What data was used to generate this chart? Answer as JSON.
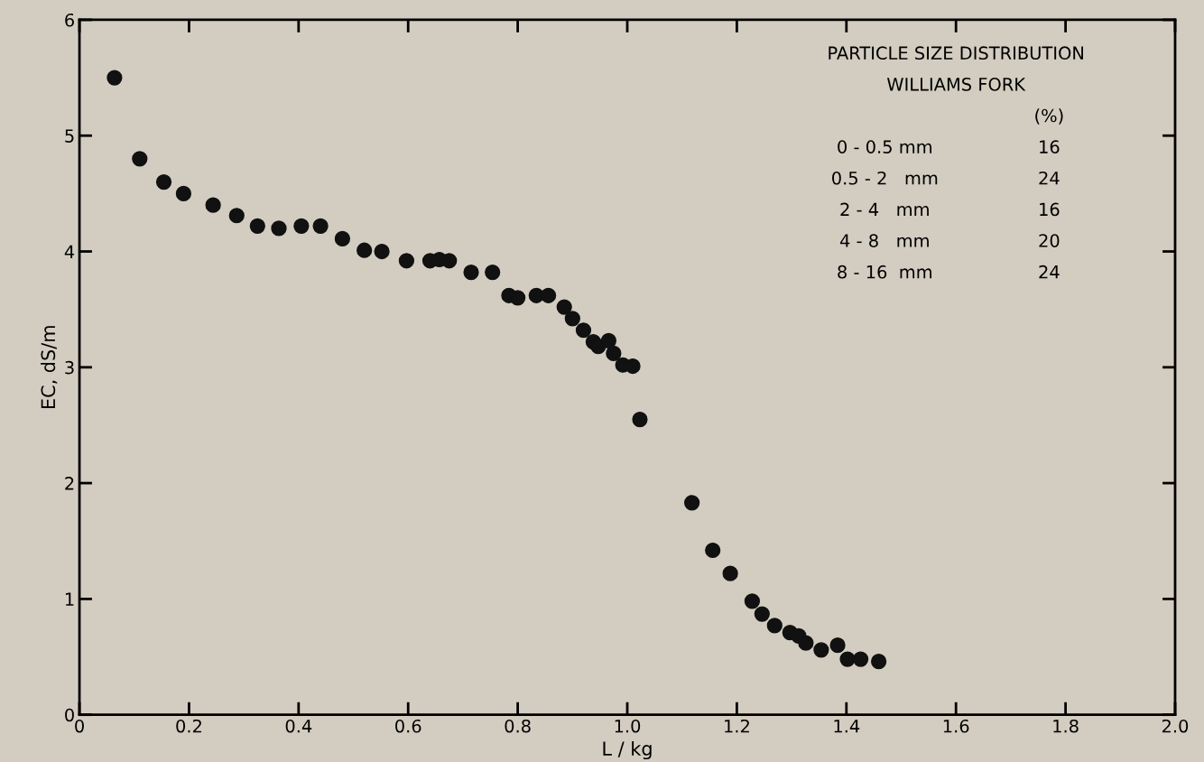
{
  "chart_data": {
    "type": "scatter",
    "xlabel": "L / kg",
    "ylabel": "EC, dS/m",
    "x": [
      0.064,
      0.11,
      0.154,
      0.19,
      0.244,
      0.287,
      0.325,
      0.364,
      0.405,
      0.44,
      0.48,
      0.52,
      0.552,
      0.597,
      0.64,
      0.657,
      0.675,
      0.715,
      0.754,
      0.784,
      0.8,
      0.834,
      0.856,
      0.885,
      0.9,
      0.92,
      0.938,
      0.947,
      0.966,
      0.975,
      0.992,
      1.01,
      1.023,
      1.118,
      1.156,
      1.188,
      1.228,
      1.246,
      1.269,
      1.297,
      1.313,
      1.326,
      1.354,
      1.384,
      1.402,
      1.426,
      1.459
    ],
    "values": [
      5.5,
      4.8,
      4.6,
      4.5,
      4.4,
      4.31,
      4.22,
      4.2,
      4.22,
      4.22,
      4.11,
      4.01,
      4.0,
      3.92,
      3.92,
      3.93,
      3.92,
      3.82,
      3.82,
      3.62,
      3.6,
      3.62,
      3.62,
      3.52,
      3.42,
      3.32,
      3.22,
      3.18,
      3.23,
      3.12,
      3.02,
      3.01,
      2.55,
      1.83,
      1.42,
      1.22,
      0.98,
      0.87,
      0.77,
      0.71,
      0.68,
      0.62,
      0.56,
      0.6,
      0.48,
      0.48,
      0.46
    ],
    "color": "#111111",
    "marker": "circle",
    "xlim": [
      0,
      2
    ],
    "ylim": [
      0,
      6
    ],
    "xticks": [
      0,
      0.2,
      0.4,
      0.6,
      0.8,
      {
        "value": 1,
        "label": "1.0"
      },
      1.2,
      1.4,
      1.6,
      1.8,
      {
        "value": 2,
        "label": "2.0"
      }
    ],
    "yticks": [
      0,
      1,
      2,
      3,
      4,
      5,
      6
    ],
    "grid": false,
    "legend": false,
    "annotations": [
      "PARTICLE SIZE DISTRIBUTION",
      "WILLIAMS FORK",
      "(%)",
      "0 - 0.5 mm",
      "16",
      "0.5 - 2   mm",
      "24",
      "2 - 4   mm",
      "16",
      "4 - 8   mm",
      "20",
      "8 - 16  mm",
      "24"
    ]
  }
}
